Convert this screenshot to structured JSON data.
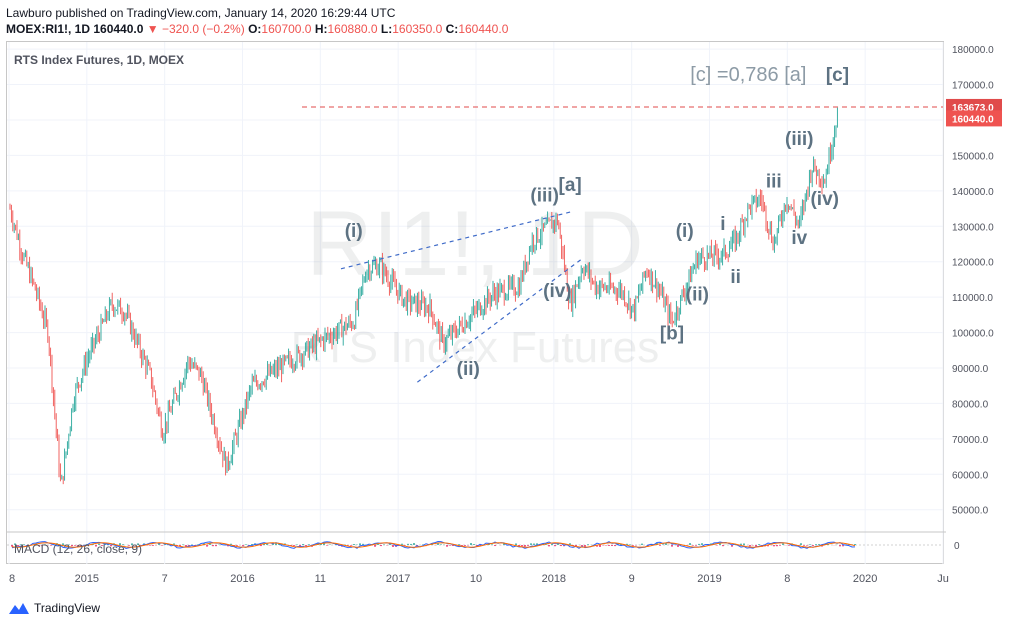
{
  "header": {
    "published": "Lawburo published on TradingView.com, January 14, 2020 16:29:44 UTC",
    "symbol": "MOEX:RI1!, 1D",
    "price": "160440.0",
    "change": "−320.0 (−0.2%)",
    "o_label": "O:",
    "o": "160700.0",
    "h_label": "H:",
    "h": "160880.0",
    "l_label": "L:",
    "l": "160350.0",
    "c_label": "C:",
    "c": "160440.0"
  },
  "legend": "RTS Index Futures, 1D, MOEX",
  "macd_legend": "MACD (12, 26, close, 9)",
  "watermark": {
    "symbol": "RI1!, 1D",
    "name": "RTS Index Futures"
  },
  "footer": {
    "brand": "TradingView"
  },
  "colors": {
    "up": "#26a69a",
    "down": "#ef5350",
    "wave_label": "#5d7282",
    "dash": "#3f6bc8",
    "level_line": "#e04b4b"
  },
  "chart_data": {
    "type": "candlestick",
    "title": "RTS Index Futures, 1D, MOEX",
    "x_ticks": [
      "8",
      "2015",
      "7",
      "2016",
      "11",
      "2017",
      "10",
      "2018",
      "9",
      "2019",
      "8",
      "2020",
      "Ju"
    ],
    "y_ticks": [
      50000,
      60000,
      70000,
      80000,
      90000,
      100000,
      110000,
      120000,
      130000,
      140000,
      150000,
      160000,
      170000,
      180000
    ],
    "ylim": [
      44000,
      182000
    ],
    "price_series_approx": [
      {
        "x": "2014-08",
        "y": 135000
      },
      {
        "x": "2014-09",
        "y": 122000
      },
      {
        "x": "2014-10",
        "y": 112000
      },
      {
        "x": "2014-11",
        "y": 100000
      },
      {
        "x": "2014-12",
        "y": 56000
      },
      {
        "x": "2015-01",
        "y": 82000
      },
      {
        "x": "2015-02",
        "y": 92000
      },
      {
        "x": "2015-04",
        "y": 108000
      },
      {
        "x": "2015-05",
        "y": 106000
      },
      {
        "x": "2015-07",
        "y": 88000
      },
      {
        "x": "2015-08",
        "y": 72000
      },
      {
        "x": "2015-10",
        "y": 92000
      },
      {
        "x": "2015-11",
        "y": 88000
      },
      {
        "x": "2016-01",
        "y": 62000
      },
      {
        "x": "2016-03",
        "y": 85000
      },
      {
        "x": "2016-06",
        "y": 92000
      },
      {
        "x": "2016-09",
        "y": 99000
      },
      {
        "x": "2016-11",
        "y": 103000
      },
      {
        "x": "2016-12",
        "y": 118000
      },
      {
        "x": "2017-01",
        "y": 119000
      },
      {
        "x": "2017-03",
        "y": 109000
      },
      {
        "x": "2017-05",
        "y": 107000
      },
      {
        "x": "2017-06",
        "y": 97000
      },
      {
        "x": "2017-08",
        "y": 104000
      },
      {
        "x": "2017-10",
        "y": 111000
      },
      {
        "x": "2017-12",
        "y": 113000
      },
      {
        "x": "2018-01",
        "y": 126000
      },
      {
        "x": "2018-03",
        "y": 132000
      },
      {
        "x": "2018-04",
        "y": 108000
      },
      {
        "x": "2018-05",
        "y": 119000
      },
      {
        "x": "2018-06",
        "y": 113000
      },
      {
        "x": "2018-08",
        "y": 112000
      },
      {
        "x": "2018-09",
        "y": 106000
      },
      {
        "x": "2018-10",
        "y": 118000
      },
      {
        "x": "2018-11",
        "y": 112000
      },
      {
        "x": "2018-12",
        "y": 103000
      },
      {
        "x": "2019-02",
        "y": 121000
      },
      {
        "x": "2019-04",
        "y": 122000
      },
      {
        "x": "2019-05",
        "y": 126000
      },
      {
        "x": "2019-06",
        "y": 135000
      },
      {
        "x": "2019-07",
        "y": 138000
      },
      {
        "x": "2019-08",
        "y": 125000
      },
      {
        "x": "2019-09",
        "y": 138000
      },
      {
        "x": "2019-10",
        "y": 130000
      },
      {
        "x": "2019-11",
        "y": 147000
      },
      {
        "x": "2019-12",
        "y": 143000
      },
      {
        "x": "2020-01",
        "y": 162000
      }
    ],
    "price_labels": [
      {
        "value": "163673.0",
        "y": 163673,
        "color": "#e04b4b"
      },
      {
        "value": "160440.0",
        "y": 160440,
        "color": "#ef5350"
      }
    ],
    "level_line": 163673,
    "annotations": [
      {
        "text": "[c] =0,786 [a]",
        "x": "2019-06",
        "y": 171000
      },
      {
        "text": "[c]",
        "x": "2020-01",
        "y": 171000
      },
      {
        "text": "[a]",
        "x": "2018-04",
        "y": 140000
      },
      {
        "text": "[b]",
        "x": "2018-12",
        "y": 98000
      },
      {
        "text": "(i)",
        "x": "2016-11",
        "y": 127000
      },
      {
        "text": "(ii)",
        "x": "2017-08",
        "y": 88000
      },
      {
        "text": "(iii)",
        "x": "2018-02",
        "y": 137000
      },
      {
        "text": "(iv)",
        "x": "2018-03",
        "y": 110000
      },
      {
        "text": "(i)",
        "x": "2019-01",
        "y": 127000
      },
      {
        "text": "(ii)",
        "x": "2019-02",
        "y": 109000
      },
      {
        "text": "(iii)",
        "x": "2019-10",
        "y": 153000
      },
      {
        "text": "(iv)",
        "x": "2019-12",
        "y": 136000
      },
      {
        "text": "i",
        "x": "2019-04",
        "y": 129000
      },
      {
        "text": "ii",
        "x": "2019-05",
        "y": 114000
      },
      {
        "text": "iii",
        "x": "2019-08",
        "y": 141000
      },
      {
        "text": "iv",
        "x": "2019-10",
        "y": 125000
      }
    ],
    "trendlines": [
      {
        "from": {
          "x": "2016-10",
          "y": 118000
        },
        "to": {
          "x": "2018-04",
          "y": 134000
        }
      },
      {
        "from": {
          "x": "2017-04",
          "y": 86000
        },
        "to": {
          "x": "2018-05",
          "y": 121000
        }
      }
    ],
    "macd": {
      "zero_label": "0"
    },
    "grid": true,
    "legend_position": "top-left"
  }
}
